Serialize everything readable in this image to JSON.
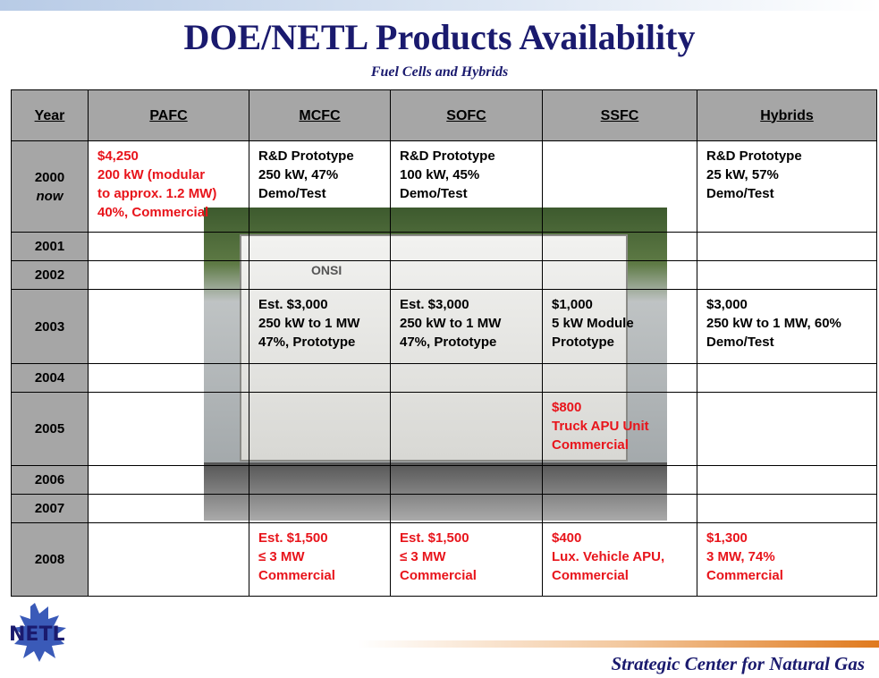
{
  "header": {
    "title": "DOE/NETL Products Availability",
    "subtitle": "Fuel Cells and Hybrids"
  },
  "photo": {
    "label": "ONSI"
  },
  "table": {
    "columns": [
      "Year",
      "PAFC",
      "MCFC",
      "SOFC",
      "SSFC",
      "Hybrids"
    ],
    "rows": [
      {
        "year": [
          "2000",
          "now"
        ],
        "cells": [
          {
            "lines": [
              "$4,250",
              "200 kW (modular",
              "to approx. 1.2 MW)",
              "40%, Commercial"
            ],
            "color": "#e8141b"
          },
          {
            "lines": [
              "R&D Prototype",
              "250 kW, 47%",
              "Demo/Test"
            ],
            "color": "#000000"
          },
          {
            "lines": [
              "R&D Prototype",
              "100 kW, 45%",
              "Demo/Test"
            ],
            "color": "#000000"
          },
          {
            "lines": [],
            "color": "#000000"
          },
          {
            "lines": [
              "R&D Prototype",
              "25 kW, 57%",
              "Demo/Test"
            ],
            "color": "#000000"
          }
        ]
      },
      {
        "year": [
          "2001"
        ],
        "cells": [
          {
            "lines": [],
            "color": "#000000"
          },
          {
            "lines": [],
            "color": "#000000"
          },
          {
            "lines": [],
            "color": "#000000"
          },
          {
            "lines": [],
            "color": "#000000"
          },
          {
            "lines": [],
            "color": "#000000"
          }
        ]
      },
      {
        "year": [
          "2002"
        ],
        "cells": [
          {
            "lines": [],
            "color": "#000000"
          },
          {
            "lines": [],
            "color": "#000000"
          },
          {
            "lines": [],
            "color": "#000000"
          },
          {
            "lines": [],
            "color": "#000000"
          },
          {
            "lines": [],
            "color": "#000000"
          }
        ]
      },
      {
        "year": [
          "2003"
        ],
        "cells": [
          {
            "lines": [],
            "color": "#000000"
          },
          {
            "lines": [
              "Est. $3,000",
              "250 kW to 1 MW",
              "47%, Prototype"
            ],
            "color": "#000000"
          },
          {
            "lines": [
              "Est. $3,000",
              "250 kW to 1 MW",
              "47%, Prototype"
            ],
            "color": "#000000"
          },
          {
            "lines": [
              "$1,000",
              "5 kW Module",
              "Prototype"
            ],
            "color": "#000000"
          },
          {
            "lines": [
              "$3,000",
              "250 kW to 1 MW, 60%",
              "Demo/Test"
            ],
            "color": "#000000"
          }
        ]
      },
      {
        "year": [
          "2004"
        ],
        "cells": [
          {
            "lines": [],
            "color": "#000000"
          },
          {
            "lines": [],
            "color": "#000000"
          },
          {
            "lines": [],
            "color": "#000000"
          },
          {
            "lines": [],
            "color": "#000000"
          },
          {
            "lines": [],
            "color": "#000000"
          }
        ]
      },
      {
        "year": [
          "2005"
        ],
        "cells": [
          {
            "lines": [],
            "color": "#000000"
          },
          {
            "lines": [],
            "color": "#000000"
          },
          {
            "lines": [],
            "color": "#000000"
          },
          {
            "lines": [
              "$800",
              "Truck APU Unit",
              "Commercial"
            ],
            "color": "#e8141b"
          },
          {
            "lines": [],
            "color": "#000000"
          }
        ]
      },
      {
        "year": [
          "2006"
        ],
        "cells": [
          {
            "lines": [],
            "color": "#000000"
          },
          {
            "lines": [],
            "color": "#000000"
          },
          {
            "lines": [],
            "color": "#000000"
          },
          {
            "lines": [],
            "color": "#000000"
          },
          {
            "lines": [],
            "color": "#000000"
          }
        ]
      },
      {
        "year": [
          "2007"
        ],
        "cells": [
          {
            "lines": [],
            "color": "#000000"
          },
          {
            "lines": [],
            "color": "#000000"
          },
          {
            "lines": [],
            "color": "#000000"
          },
          {
            "lines": [],
            "color": "#000000"
          },
          {
            "lines": [],
            "color": "#000000"
          }
        ]
      },
      {
        "year": [
          "2008"
        ],
        "cells": [
          {
            "lines": [],
            "color": "#000000"
          },
          {
            "lines": [
              "Est. $1,500",
              "≤ 3 MW",
              "Commercial"
            ],
            "color": "#e8141b"
          },
          {
            "lines": [
              "Est. $1,500",
              "≤ 3 MW",
              "Commercial"
            ],
            "color": "#e8141b"
          },
          {
            "lines": [
              "$400",
              "Lux. Vehicle APU,",
              "Commercial"
            ],
            "color": "#e8141b"
          },
          {
            "lines": [
              "$1,300",
              "3 MW, 74%",
              "Commercial"
            ],
            "color": "#e8141b"
          }
        ]
      }
    ]
  },
  "footer": {
    "logo": "NETL",
    "text": "Strategic Center for Natural Gas"
  }
}
